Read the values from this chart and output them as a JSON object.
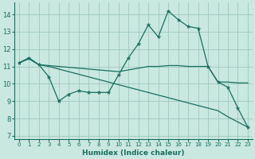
{
  "xlabel": "Humidex (Indice chaleur)",
  "xlim": [
    -0.5,
    23.5
  ],
  "ylim": [
    6.8,
    14.7
  ],
  "yticks": [
    7,
    8,
    9,
    10,
    11,
    12,
    13,
    14
  ],
  "xticks": [
    0,
    1,
    2,
    3,
    4,
    5,
    6,
    7,
    8,
    9,
    10,
    11,
    12,
    13,
    14,
    15,
    16,
    17,
    18,
    19,
    20,
    21,
    22,
    23
  ],
  "bg_color": "#c8e8e0",
  "grid_color": "#a0c8be",
  "line_color": "#1a6e60",
  "line1_x": [
    0,
    1,
    2,
    3,
    4,
    5,
    6,
    7,
    8,
    9,
    10,
    11,
    12,
    13,
    14,
    15,
    16,
    17,
    18,
    19,
    20,
    21,
    22,
    23
  ],
  "line1_y": [
    11.2,
    11.5,
    11.1,
    10.4,
    9.0,
    9.4,
    9.6,
    9.5,
    9.5,
    9.5,
    10.5,
    11.5,
    12.3,
    13.4,
    12.7,
    14.2,
    13.7,
    13.3,
    13.2,
    11.0,
    10.1,
    9.8,
    8.6,
    7.5
  ],
  "line2_x": [
    0,
    1,
    2,
    3,
    4,
    5,
    6,
    7,
    8,
    9,
    10,
    11,
    12,
    13,
    14,
    15,
    16,
    17,
    18,
    19,
    20,
    21,
    22,
    23
  ],
  "line2_y": [
    11.2,
    11.45,
    11.1,
    11.05,
    11.0,
    10.95,
    10.9,
    10.85,
    10.8,
    10.75,
    10.7,
    10.8,
    10.9,
    11.0,
    11.0,
    11.05,
    11.05,
    11.0,
    11.0,
    11.0,
    10.1,
    10.1,
    10.05,
    10.05
  ],
  "line3_x": [
    0,
    1,
    2,
    3,
    4,
    5,
    6,
    7,
    8,
    9,
    10,
    11,
    12,
    13,
    14,
    15,
    16,
    17,
    18,
    19,
    20,
    21,
    22,
    23
  ],
  "line3_y": [
    11.2,
    11.45,
    11.1,
    11.0,
    10.85,
    10.7,
    10.55,
    10.4,
    10.25,
    10.1,
    9.95,
    9.8,
    9.65,
    9.5,
    9.35,
    9.2,
    9.05,
    8.9,
    8.75,
    8.6,
    8.45,
    8.1,
    7.8,
    7.5
  ]
}
